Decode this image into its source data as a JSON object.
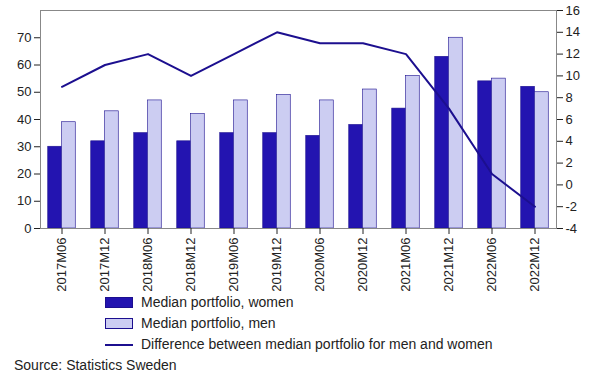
{
  "chart_data": {
    "type": "bar",
    "categories": [
      "2017M06",
      "2017M12",
      "2018M06",
      "2018M12",
      "2019M06",
      "2019M12",
      "2020M06",
      "2020M12",
      "2021M06",
      "2021M12",
      "2022M06",
      "2022M12"
    ],
    "series": [
      {
        "name": "Median portfolio, women",
        "type": "bar",
        "color": "#2314b0",
        "values": [
          30,
          32,
          35,
          32,
          35,
          35,
          34,
          38,
          44,
          63,
          54,
          52
        ]
      },
      {
        "name": "Median portfolio, men",
        "type": "bar",
        "color": "#cccdf2",
        "values": [
          39,
          43,
          47,
          42,
          47,
          49,
          47,
          51,
          56,
          70,
          55,
          50
        ]
      },
      {
        "name": "Difference between median portfolio for men and women",
        "type": "line",
        "axis": "y2",
        "color": "#1c0f8f",
        "values": [
          9,
          11,
          12,
          10,
          12,
          14,
          13,
          13,
          12,
          7,
          1,
          -2
        ]
      }
    ],
    "ylim": [
      0,
      80
    ],
    "yticks": [
      0,
      10,
      20,
      30,
      40,
      50,
      60,
      70
    ],
    "y2lim": [
      -4,
      16
    ],
    "y2ticks": [
      -4,
      -2,
      0,
      2,
      4,
      6,
      8,
      10,
      12,
      14,
      16
    ],
    "legend": "bottom",
    "caption": "Source: Statistics Sweden"
  }
}
